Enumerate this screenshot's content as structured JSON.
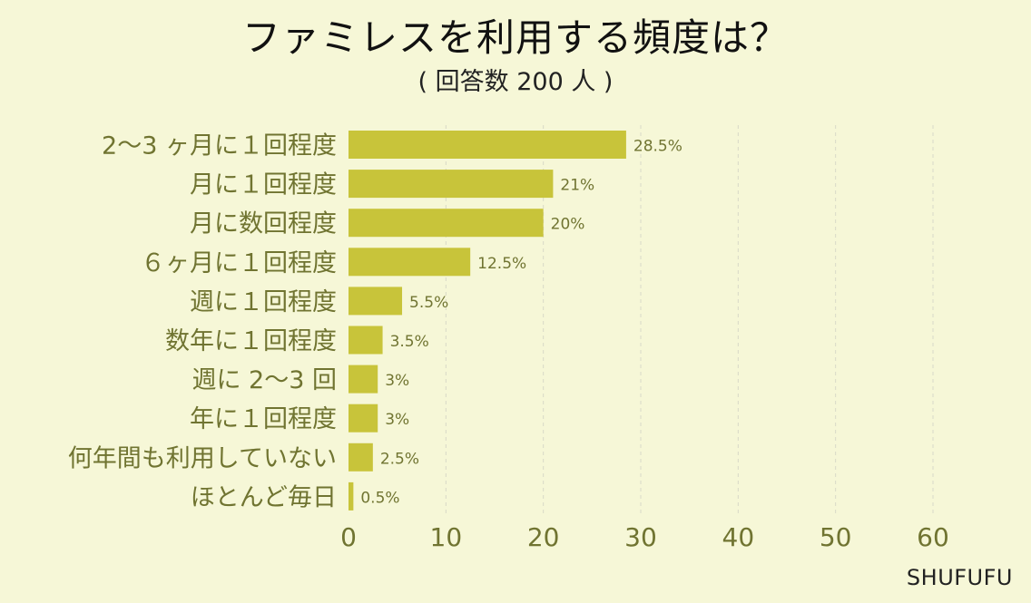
{
  "title": "ファミレスを利用する頻度は？",
  "subtitle": "( 回答数 200 人 )",
  "brand": "SHUFUFU",
  "colors": {
    "background": "#f6f7d7",
    "bar": "#c8c43a",
    "axis_text": "#707431",
    "label_text": "#707431",
    "value_text": "#707431",
    "grid": "#d8d8c8",
    "title": "#111111"
  },
  "chart_data": {
    "type": "bar",
    "orientation": "horizontal",
    "categories": [
      "2～3 ヶ月に１回程度",
      "月に１回程度",
      "月に数回程度",
      "６ヶ月に１回程度",
      "週に１回程度",
      "数年に１回程度",
      "週に 2～3 回",
      "年に１回程度",
      "何年間も利用していない",
      "ほとんど毎日"
    ],
    "values": [
      28.5,
      21,
      20,
      12.5,
      5.5,
      3.5,
      3,
      3,
      2.5,
      0.5
    ],
    "value_labels": [
      "28.5%",
      "21%",
      "20%",
      "12.5%",
      "5.5%",
      "3.5%",
      "3%",
      "3%",
      "2.5%",
      "0.5%"
    ],
    "axis_scale_max": 60,
    "xticks": [
      0,
      10,
      20,
      30,
      40,
      50,
      60
    ],
    "grid": true,
    "legend": "none"
  }
}
